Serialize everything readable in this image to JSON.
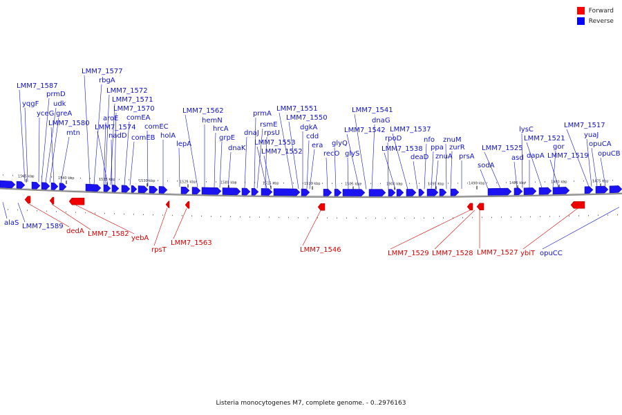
{
  "legend": {
    "forward_label": "Forward",
    "reverse_label": "Reverse",
    "forward_color": "#ff0000",
    "reverse_color": "#0000ff"
  },
  "caption": "Listeria monocytogenes M7, complete genome. - 0..2976163",
  "scale": {
    "ticks": [
      "1545 kbp",
      "1540 kbp",
      "1535 kbp",
      "1530 kbp",
      "1525 kbp",
      "1520 kbp",
      "1515 kbp",
      "1510 kbp",
      "1505 kbp",
      "1500 kbp",
      "1495 kbp",
      "1490 kbp",
      "1485 kbp",
      "1480 kbp",
      "1475 kbp"
    ]
  },
  "genes": {
    "reverse": [
      "LMM7_1587",
      "yqgF",
      "prmD",
      "udk",
      "yceG",
      "greA",
      "LMM7_1580",
      "mtn",
      "LMM7_1577",
      "rbgA",
      "LMM7_1572",
      "LMM7_1571",
      "LMM7_1570",
      "aroE",
      "comEA",
      "LMM7_1574",
      "nadD",
      "comEC",
      "comEB",
      "holA",
      "lepA",
      "LMM7_1562",
      "hemN",
      "hrcA",
      "grpE",
      "dnaK",
      "prmA",
      "dnaJ",
      "rsmE",
      "rpsU",
      "LMM7_1553",
      "LMM7_1552",
      "LMM7_1551",
      "LMM7_1550",
      "dgkA",
      "cdd",
      "era",
      "recO",
      "glyQ",
      "glyS",
      "LMM7_1541",
      "dnaG",
      "LMM7_1542",
      "rpoD",
      "LMM7_1538",
      "LMM7_1537",
      "deaD",
      "nfo",
      "ppa",
      "znuA",
      "znuM",
      "zurR",
      "prsA",
      "sodA",
      "LMM7_1525",
      "lysC",
      "asd",
      "dapA",
      "LMM7_1521",
      "gor",
      "LMM7_1519",
      "LMM7_1517",
      "yuaJ",
      "opuCA",
      "opuCB",
      "alaS",
      "LMM7_1589",
      "opuCC"
    ],
    "forward": [
      "dedA",
      "LMM7_1582",
      "yebA",
      "rpsT",
      "LMM7_1563",
      "LMM7_1546",
      "LMM7_1529",
      "LMM7_1528",
      "LMM7_1527",
      "ybiT"
    ]
  }
}
